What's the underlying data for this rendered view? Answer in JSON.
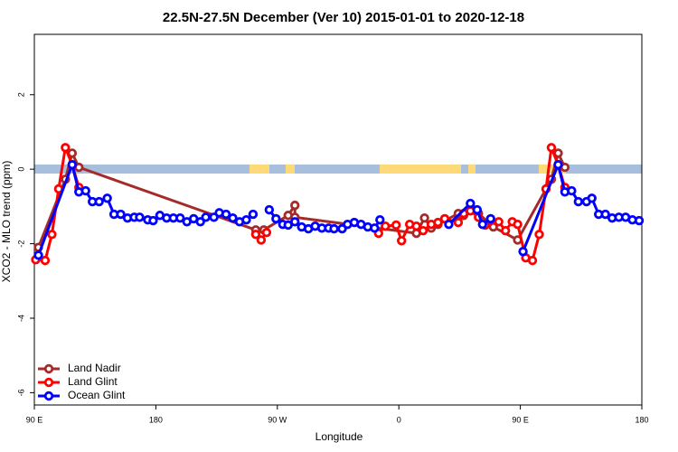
{
  "chart_data": {
    "type": "line",
    "title": "22.5N-27.5N December (Ver 10)   2015-01-01 to 2020-12-18",
    "xlabel": "Longitude",
    "ylabel": "XCO2 - MLO trend (ppm)",
    "xlim": [
      90,
      540
    ],
    "ylim": [
      -6.33,
      3.62
    ],
    "xticks": [
      {
        "value": 90,
        "label": "90 E"
      },
      180,
      {
        "value": 270,
        "label": "90 W"
      },
      {
        "value": 360,
        "label": "0"
      },
      {
        "value": 450,
        "label": "90 E"
      },
      {
        "value": 540,
        "label": "180"
      }
    ],
    "yticks": [
      -6,
      -4,
      -2,
      0,
      2
    ],
    "legend": "bottom-left",
    "series": [
      {
        "name": "Land Nadir",
        "color": "#a52a2a",
        "x": [
          93,
          113,
          118,
          123,
          254,
          260,
          278,
          283,
          283,
          373,
          379,
          384,
          389,
          404,
          408,
          413,
          419,
          430,
          448,
          473,
          478,
          483
        ],
        "values": [
          -2.1,
          -0.27,
          0.43,
          0.05,
          -1.63,
          -1.63,
          -1.24,
          -0.97,
          -1.29,
          -1.72,
          -1.31,
          -1.58,
          -1.48,
          -1.19,
          -1.24,
          -1.09,
          -1.19,
          -1.55,
          -1.9,
          -0.27,
          0.43,
          0.05
        ]
      },
      {
        "name": "Land Glint",
        "color": "#ff0000",
        "x": [
          91,
          98,
          103,
          108,
          113,
          118,
          123,
          null,
          254,
          258,
          262,
          null,
          345,
          350,
          358,
          362,
          368,
          373,
          378,
          384,
          389,
          394,
          404,
          408,
          413,
          419,
          424,
          434,
          439,
          444,
          448,
          454,
          459,
          464,
          469,
          473,
          478,
          483
        ],
        "values": [
          -2.43,
          -2.45,
          -1.75,
          -0.53,
          0.58,
          0.12,
          -0.49,
          null,
          -1.75,
          -1.9,
          -1.7,
          null,
          -1.72,
          -1.53,
          -1.5,
          -1.92,
          -1.48,
          -1.53,
          -1.65,
          -1.48,
          -1.43,
          -1.33,
          -1.43,
          -1.19,
          -1.12,
          -1.29,
          -1.5,
          -1.41,
          -1.65,
          -1.41,
          -1.48,
          -2.38,
          -2.45,
          -1.75,
          -0.53,
          0.58,
          0.12,
          -0.49
        ]
      },
      {
        "name": "Ocean Glint",
        "color": "#0000ff",
        "x": [
          93,
          118,
          123,
          128,
          133,
          138,
          144,
          149,
          154,
          159,
          164,
          168,
          174,
          178,
          183,
          188,
          193,
          198,
          203,
          208,
          213,
          217,
          223,
          227,
          232,
          237,
          242,
          247,
          252,
          null,
          264,
          269,
          274,
          278,
          283,
          288,
          293,
          298,
          303,
          308,
          312,
          318,
          322,
          327,
          332,
          337,
          342,
          346,
          null,
          397,
          413,
          418,
          422,
          428,
          null,
          452,
          478,
          483,
          488,
          493,
          499,
          503,
          508,
          513,
          518,
          523,
          528,
          533,
          538
        ],
        "values": [
          -2.31,
          0.12,
          -0.61,
          -0.58,
          -0.87,
          -0.87,
          -0.78,
          -1.21,
          -1.21,
          -1.31,
          -1.29,
          -1.29,
          -1.36,
          -1.38,
          -1.24,
          -1.31,
          -1.31,
          -1.31,
          -1.41,
          -1.33,
          -1.41,
          -1.29,
          -1.29,
          -1.17,
          -1.21,
          -1.31,
          -1.41,
          -1.36,
          -1.21,
          null,
          -1.09,
          -1.33,
          -1.48,
          -1.5,
          -1.41,
          -1.55,
          -1.6,
          -1.53,
          -1.58,
          -1.58,
          -1.6,
          -1.6,
          -1.48,
          -1.43,
          -1.48,
          -1.55,
          -1.58,
          -1.36,
          null,
          -1.48,
          -0.92,
          -1.09,
          -1.48,
          -1.33,
          null,
          -2.21,
          0.12,
          -0.61,
          -0.58,
          -0.87,
          -0.87,
          -0.78,
          -1.21,
          -1.21,
          -1.31,
          -1.29,
          -1.29,
          -1.36,
          -1.38
        ]
      }
    ]
  }
}
